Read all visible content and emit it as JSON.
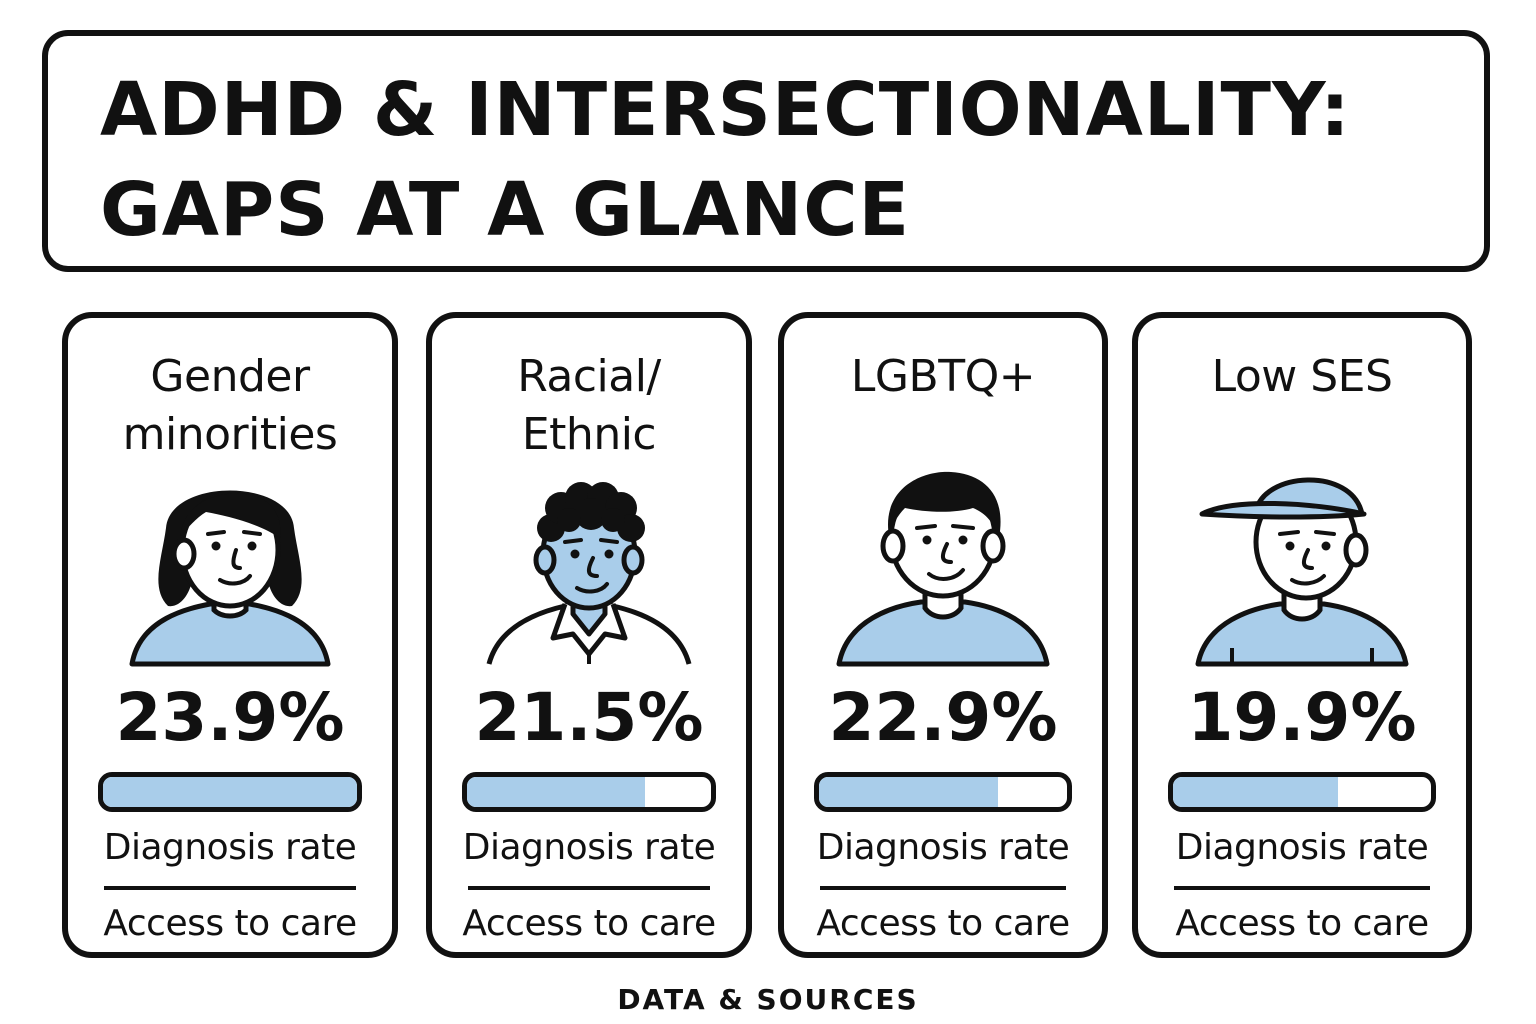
{
  "title": {
    "line1": "ADHD & INTERSECTIONALITY:",
    "line2": "GAPS AT A GLANCE"
  },
  "colors": {
    "accent": "#a9cdea",
    "outline": "#111111"
  },
  "cards": [
    {
      "label_line1": "Gender",
      "label_line2": "minorities",
      "icon": "woman-avatar-icon",
      "rate": "23.9%",
      "bar_fill_percent": 100,
      "metric_1": "Diagnosis rate",
      "metric_2": "Access to care"
    },
    {
      "label_line1": "Racial/",
      "label_line2": "Ethnic",
      "icon": "curly-hair-person-avatar-icon",
      "rate": "21.5%",
      "bar_fill_percent": 73,
      "metric_1": "Diagnosis rate",
      "metric_2": "Access to care"
    },
    {
      "label_line1": "LGBTQ+",
      "icon": "man-avatar-icon",
      "rate": "22.9%",
      "bar_fill_percent": 72,
      "metric_1": "Diagnosis rate",
      "metric_2": "Access to care"
    },
    {
      "label_line1": "Low SES",
      "icon": "cap-wearing-person-avatar-icon",
      "rate": "19.9%",
      "bar_fill_percent": 64,
      "metric_1": "Diagnosis rate",
      "metric_2": "Access to care"
    }
  ],
  "footer": "DATA & SOURCES"
}
